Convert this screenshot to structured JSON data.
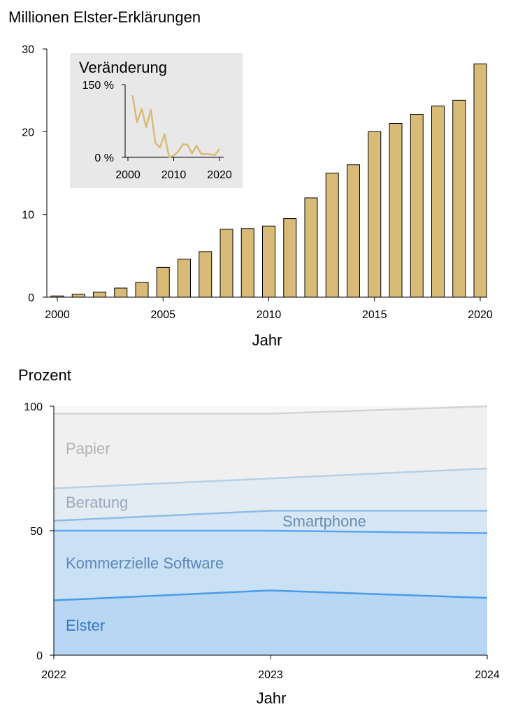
{
  "chart_data": [
    {
      "type": "bar",
      "title": "Millionen Elster-Erklärungen",
      "xlabel": "Jahr",
      "ylabel": "",
      "ylim": [
        0,
        30
      ],
      "yticks": [
        0,
        10,
        20,
        30
      ],
      "xticks": [
        2000,
        2005,
        2010,
        2015,
        2020
      ],
      "categories": [
        2000,
        2001,
        2002,
        2003,
        2004,
        2005,
        2006,
        2007,
        2008,
        2009,
        2010,
        2011,
        2012,
        2013,
        2014,
        2015,
        2016,
        2017,
        2018,
        2019,
        2020
      ],
      "values": [
        0.15,
        0.35,
        0.6,
        1.1,
        1.8,
        3.6,
        4.6,
        5.5,
        8.2,
        8.3,
        8.6,
        9.5,
        12.0,
        15.0,
        16.0,
        20.0,
        21.0,
        22.1,
        23.1,
        23.8,
        28.2
      ],
      "bar_color": "#d9bb78",
      "inset": {
        "type": "line",
        "title": "Veränderung",
        "ytick_labels": [
          "150 %",
          "0 %"
        ],
        "yticks": [
          150,
          0
        ],
        "ylim": [
          0,
          150
        ],
        "xticks": [
          2000,
          2010,
          2020
        ],
        "x": [
          2001,
          2002,
          2003,
          2004,
          2005,
          2006,
          2007,
          2008,
          2009,
          2010,
          2011,
          2012,
          2013,
          2014,
          2015,
          2016,
          2017,
          2018,
          2019,
          2020
        ],
        "values": [
          128,
          72,
          100,
          62,
          98,
          30,
          20,
          48,
          0,
          4,
          12,
          27,
          26,
          8,
          24,
          7,
          7,
          6,
          5,
          17
        ],
        "line_color": "#d9bb78"
      }
    },
    {
      "type": "area",
      "title": "Prozent",
      "xlabel": "Jahr",
      "ylim": [
        0,
        100
      ],
      "yticks": [
        0,
        50,
        100
      ],
      "x": [
        2022,
        2023,
        2024
      ],
      "series": [
        {
          "name": "Elster",
          "upper": [
            22,
            26,
            23
          ],
          "fill": "#b7d7f5",
          "line": "#4a9be8",
          "label_color": "#3a78c4"
        },
        {
          "name": "Kommerzielle Software",
          "upper": [
            50,
            50,
            49
          ],
          "fill": "#c9e0f5",
          "line": "#5aa5ec",
          "label_color": "#5c88b8"
        },
        {
          "name": "Smartphone",
          "upper": [
            54,
            58,
            58
          ],
          "fill": "#d7e6f4",
          "line": "#8ebce6",
          "label_color": "#6a8fb3"
        },
        {
          "name": "Beratung",
          "upper": [
            67,
            71,
            75
          ],
          "fill": "#e3ebf3",
          "line": "#b7d0e6",
          "label_color": "#9aaabb"
        },
        {
          "name": "Papier",
          "upper": [
            97,
            97,
            100
          ],
          "fill": "#f0f0f0",
          "line": "#d4d4d4",
          "label_color": "#b4b4b4"
        }
      ]
    }
  ]
}
